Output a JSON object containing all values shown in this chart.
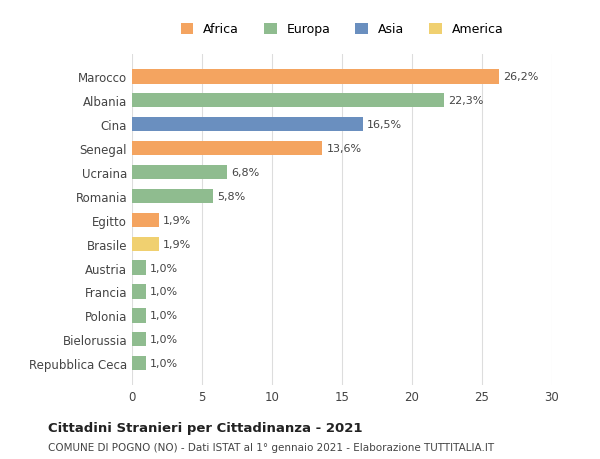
{
  "categories": [
    "Repubblica Ceca",
    "Bielorussia",
    "Polonia",
    "Francia",
    "Austria",
    "Brasile",
    "Egitto",
    "Romania",
    "Ucraina",
    "Senegal",
    "Cina",
    "Albania",
    "Marocco"
  ],
  "values": [
    1.0,
    1.0,
    1.0,
    1.0,
    1.0,
    1.9,
    1.9,
    5.8,
    6.8,
    13.6,
    16.5,
    22.3,
    26.2
  ],
  "bar_colors": [
    "#8FBC8F",
    "#8FBC8F",
    "#8FBC8F",
    "#8FBC8F",
    "#8FBC8F",
    "#F0D070",
    "#F4A460",
    "#8FBC8F",
    "#8FBC8F",
    "#F4A460",
    "#6A8FBF",
    "#8FBC8F",
    "#F4A460"
  ],
  "labels": [
    "1,0%",
    "1,0%",
    "1,0%",
    "1,0%",
    "1,0%",
    "1,9%",
    "1,9%",
    "5,8%",
    "6,8%",
    "13,6%",
    "16,5%",
    "22,3%",
    "26,2%"
  ],
  "legend_order": [
    "Africa",
    "Europa",
    "Asia",
    "America"
  ],
  "legend_colors": [
    "#F4A460",
    "#8FBC8F",
    "#6A8FBF",
    "#F0D070"
  ],
  "title": "Cittadini Stranieri per Cittadinanza - 2021",
  "subtitle": "COMUNE DI POGNO (NO) - Dati ISTAT al 1° gennaio 2021 - Elaborazione TUTTITALIA.IT",
  "xlim": [
    0,
    30
  ],
  "xticks": [
    0,
    5,
    10,
    15,
    20,
    25,
    30
  ],
  "background_color": "#ffffff",
  "grid_color": "#dddddd"
}
